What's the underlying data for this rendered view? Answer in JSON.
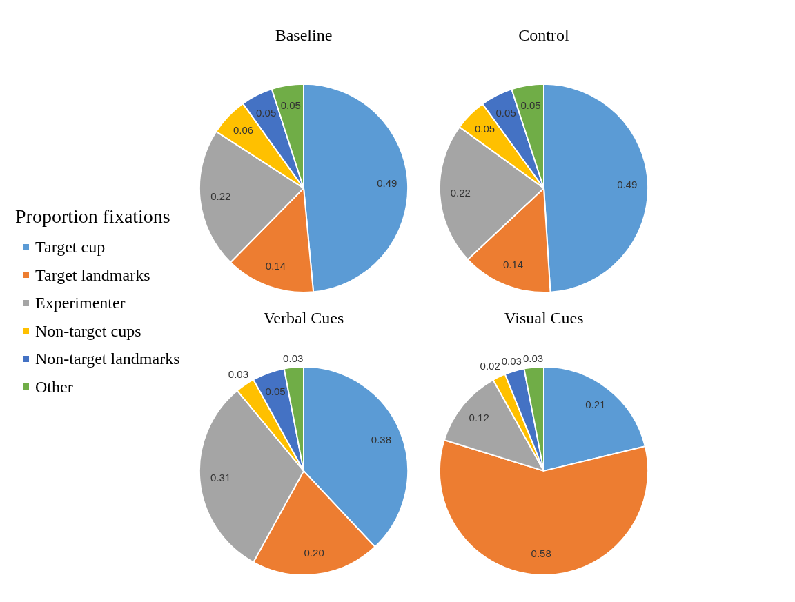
{
  "chart_data": [
    {
      "type": "pie",
      "title": "Baseline",
      "categories": [
        "Target cup",
        "Target landmarks",
        "Experimenter",
        "Non-target cups",
        "Non-target landmarks",
        "Other"
      ],
      "values": [
        0.49,
        0.14,
        0.22,
        0.06,
        0.05,
        0.05
      ],
      "colors": [
        "#5b9bd5",
        "#ed7d31",
        "#a5a5a5",
        "#ffc000",
        "#4472c4",
        "#70ad47"
      ],
      "value_labels": [
        "0.49",
        "0.14",
        "0.22",
        "0.06",
        "0.05",
        "0.05"
      ],
      "legend": "left",
      "legend_title": "Proportion fixations"
    },
    {
      "type": "pie",
      "title": "Control",
      "categories": [
        null,
        null,
        null,
        null,
        null,
        null
      ],
      "values": [
        0.49,
        0.14,
        0.22,
        0.05,
        0.05,
        0.05
      ],
      "colors": [
        "#5b9bd5",
        "#ed7d31",
        "#a5a5a5",
        "#ffc000",
        "#4472c4",
        "#70ad47"
      ],
      "value_labels": [
        "0.49",
        "0.14",
        "0.22",
        "0.05",
        "0.05",
        "0.05"
      ]
    },
    {
      "type": "pie",
      "title": "Verbal Cues",
      "categories": [
        null,
        null,
        null,
        null,
        null,
        null
      ],
      "values": [
        0.38,
        0.2,
        0.31,
        0.03,
        0.05,
        0.03
      ],
      "colors": [
        "#5b9bd5",
        "#ed7d31",
        "#a5a5a5",
        "#ffc000",
        "#4472c4",
        "#70ad47"
      ],
      "value_labels": [
        "0.38",
        "0.20",
        "0.31",
        "0.03",
        "0.05",
        "0.03"
      ]
    },
    {
      "type": "pie",
      "title": "Visual Cues",
      "categories": [
        null,
        null,
        null,
        null,
        null,
        null
      ],
      "values": [
        0.21,
        0.58,
        0.12,
        0.02,
        0.03,
        0.03
      ],
      "colors": [
        "#5b9bd5",
        "#ed7d31",
        "#a5a5a5",
        "#ffc000",
        "#4472c4",
        "#70ad47"
      ],
      "value_labels": [
        "0.21",
        "0.58",
        "0.12",
        "0.02",
        "0.03",
        "0.03"
      ]
    }
  ]
}
